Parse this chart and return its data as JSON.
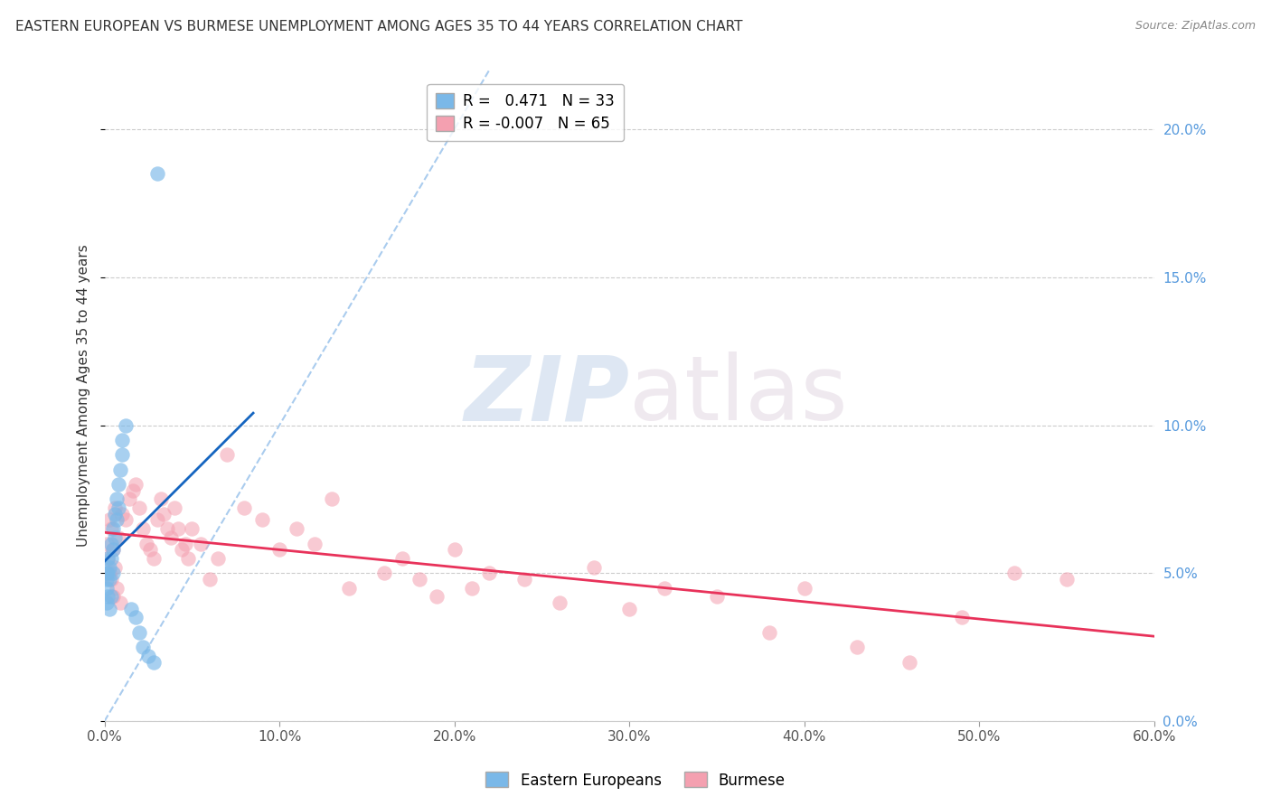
{
  "title": "EASTERN EUROPEAN VS BURMESE UNEMPLOYMENT AMONG AGES 35 TO 44 YEARS CORRELATION CHART",
  "source": "Source: ZipAtlas.com",
  "ylabel": "Unemployment Among Ages 35 to 44 years",
  "xlim": [
    0.0,
    0.6
  ],
  "ylim": [
    0.0,
    0.22
  ],
  "xticks": [
    0.0,
    0.1,
    0.2,
    0.3,
    0.4,
    0.5,
    0.6
  ],
  "yticks": [
    0.0,
    0.05,
    0.1,
    0.15,
    0.2
  ],
  "ytick_labels": [
    "0.0%",
    "5.0%",
    "10.0%",
    "15.0%",
    "20.0%"
  ],
  "xtick_labels": [
    "0.0%",
    "10.0%",
    "20.0%",
    "30.0%",
    "40.0%",
    "50.0%",
    "60.0%"
  ],
  "eastern_european_x": [
    0.001,
    0.001,
    0.001,
    0.001,
    0.002,
    0.002,
    0.002,
    0.003,
    0.003,
    0.003,
    0.004,
    0.004,
    0.004,
    0.005,
    0.005,
    0.005,
    0.006,
    0.006,
    0.007,
    0.007,
    0.008,
    0.008,
    0.009,
    0.01,
    0.01,
    0.012,
    0.015,
    0.018,
    0.02,
    0.022,
    0.025,
    0.028,
    0.03
  ],
  "eastern_european_y": [
    0.05,
    0.048,
    0.045,
    0.04,
    0.055,
    0.05,
    0.042,
    0.052,
    0.048,
    0.038,
    0.06,
    0.055,
    0.042,
    0.065,
    0.058,
    0.05,
    0.07,
    0.062,
    0.075,
    0.068,
    0.08,
    0.072,
    0.085,
    0.09,
    0.095,
    0.1,
    0.038,
    0.035,
    0.03,
    0.025,
    0.022,
    0.02,
    0.185
  ],
  "burmese_x": [
    0.001,
    0.002,
    0.003,
    0.003,
    0.004,
    0.004,
    0.005,
    0.005,
    0.006,
    0.006,
    0.007,
    0.008,
    0.009,
    0.01,
    0.012,
    0.014,
    0.016,
    0.018,
    0.02,
    0.022,
    0.024,
    0.026,
    0.028,
    0.03,
    0.032,
    0.034,
    0.036,
    0.038,
    0.04,
    0.042,
    0.044,
    0.046,
    0.048,
    0.05,
    0.055,
    0.06,
    0.065,
    0.07,
    0.08,
    0.09,
    0.1,
    0.11,
    0.12,
    0.13,
    0.14,
    0.16,
    0.17,
    0.18,
    0.19,
    0.2,
    0.21,
    0.22,
    0.24,
    0.26,
    0.28,
    0.3,
    0.32,
    0.35,
    0.38,
    0.4,
    0.43,
    0.46,
    0.49,
    0.52,
    0.55
  ],
  "burmese_y": [
    0.06,
    0.055,
    0.05,
    0.068,
    0.065,
    0.048,
    0.058,
    0.042,
    0.052,
    0.072,
    0.045,
    0.062,
    0.04,
    0.07,
    0.068,
    0.075,
    0.078,
    0.08,
    0.072,
    0.065,
    0.06,
    0.058,
    0.055,
    0.068,
    0.075,
    0.07,
    0.065,
    0.062,
    0.072,
    0.065,
    0.058,
    0.06,
    0.055,
    0.065,
    0.06,
    0.048,
    0.055,
    0.09,
    0.072,
    0.068,
    0.058,
    0.065,
    0.06,
    0.075,
    0.045,
    0.05,
    0.055,
    0.048,
    0.042,
    0.058,
    0.045,
    0.05,
    0.048,
    0.04,
    0.052,
    0.038,
    0.045,
    0.042,
    0.03,
    0.045,
    0.025,
    0.02,
    0.035,
    0.05,
    0.048
  ],
  "ee_color": "#7ab8e8",
  "burmese_color": "#f4a0b0",
  "ee_line_color": "#1565c0",
  "burmese_line_color": "#e8325a",
  "diagonal_color": "#aaccee",
  "ee_R": 0.471,
  "ee_N": 33,
  "burmese_R": -0.007,
  "burmese_N": 65,
  "background_color": "#ffffff",
  "grid_color": "#cccccc",
  "watermark_zip": "ZIP",
  "watermark_atlas": "atlas",
  "title_fontsize": 11,
  "axis_label_fontsize": 11,
  "tick_fontsize": 11,
  "legend_fontsize": 12
}
